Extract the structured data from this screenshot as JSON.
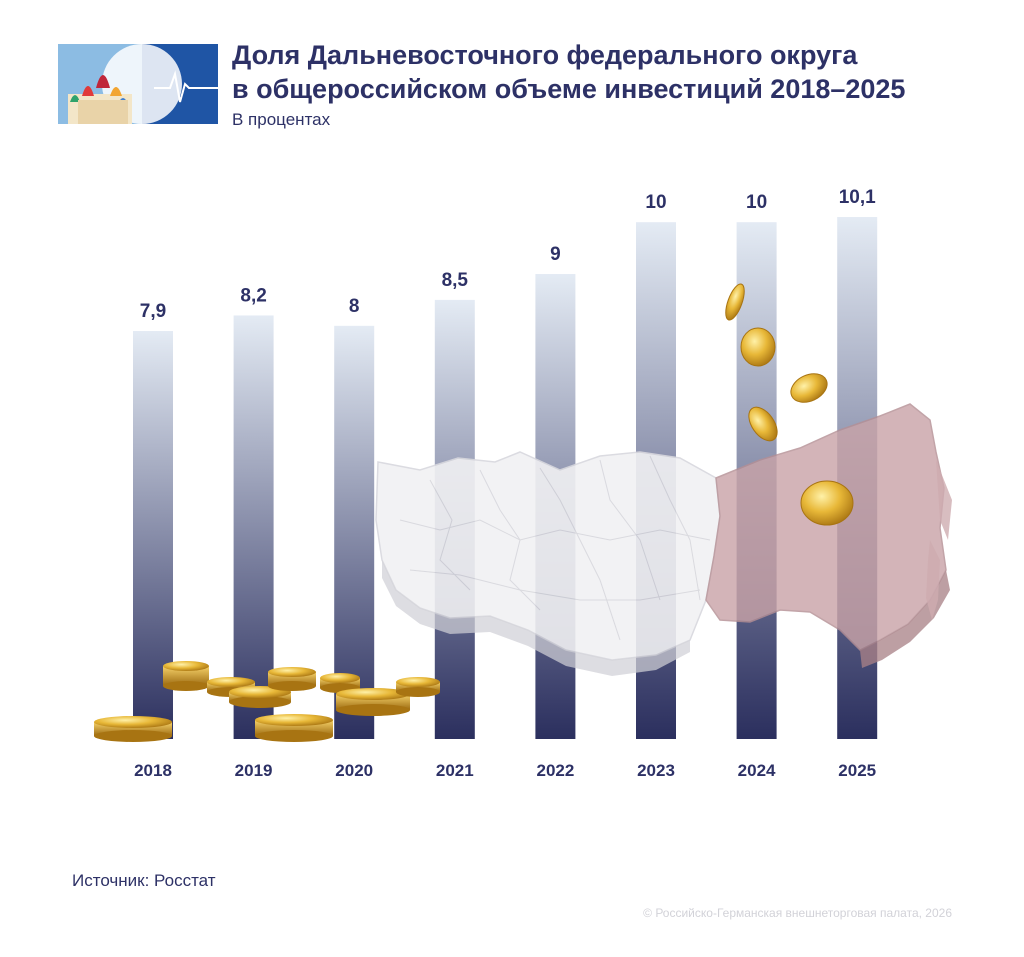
{
  "header": {
    "title_line1": "Доля Дальневосточного федерального округа",
    "title_line2": "в общероссийском объеме инвестиций 2018–2025",
    "subtitle": "В процентах"
  },
  "logo": {
    "icon": "kremlin-cathedral-heartbeat-logo"
  },
  "chart_data": {
    "type": "bar",
    "title": "Доля Дальневосточного федерального округа в общероссийском объеме инвестиций 2018–2025",
    "subtitle": "В процентах",
    "categories": [
      "2018",
      "2019",
      "2020",
      "2021",
      "2022",
      "2023",
      "2024",
      "2025"
    ],
    "values": [
      7.9,
      8.2,
      8,
      8.5,
      9,
      10,
      10,
      10.1
    ],
    "value_labels": [
      "7,9",
      "8,2",
      "8",
      "8,5",
      "9",
      "10",
      "10",
      "10,1"
    ],
    "xlabel": "",
    "ylabel": "",
    "grid": false,
    "legend": "none",
    "bar_gradient": {
      "top": "#e4ebf4",
      "bottom": "#2b2f5e"
    },
    "decorations": [
      "russia-map-far-east-highlighted",
      "gold-coins"
    ]
  },
  "footer": {
    "source": "Источник: Росстат",
    "copyright": "© Российско-Германская внешнеторговая палата, 2026"
  },
  "colors": {
    "title": "#2d3166",
    "bar_top": "#e4ebf4",
    "bar_bottom": "#2b2f5e",
    "map_land": "#f1f1f3",
    "map_far_east": "#c9a3a8",
    "coin": "#e0b23a"
  }
}
